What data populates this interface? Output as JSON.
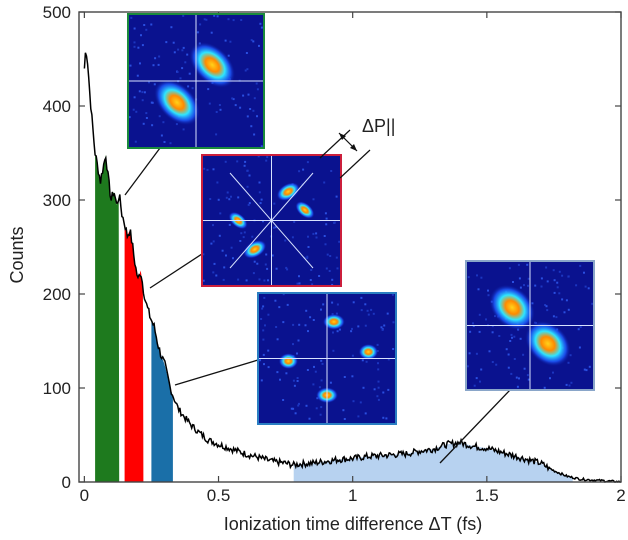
{
  "chart_data": {
    "type": "line",
    "title": "",
    "xlabel": "Ionization time difference ΔT (fs)",
    "ylabel": "Counts",
    "xlim": [
      -0.02,
      2.0
    ],
    "ylim": [
      0,
      500
    ],
    "x_ticks": [
      0,
      0.5,
      1,
      1.5,
      2
    ],
    "x_tick_labels": [
      "0",
      "0.5",
      "1",
      "1.5",
      "2"
    ],
    "y_ticks": [
      0,
      100,
      200,
      300,
      400,
      500
    ],
    "y_tick_labels": [
      "0",
      "100",
      "200",
      "300",
      "400",
      "500"
    ],
    "grid": false,
    "legend": "none",
    "series": [
      {
        "line_color": "#000000",
        "x": [
          0.0,
          0.005,
          0.01,
          0.015,
          0.02,
          0.03,
          0.04,
          0.05,
          0.06,
          0.07,
          0.08,
          0.09,
          0.1,
          0.11,
          0.12,
          0.13,
          0.14,
          0.15,
          0.16,
          0.17,
          0.18,
          0.19,
          0.2,
          0.21,
          0.22,
          0.23,
          0.24,
          0.25,
          0.26,
          0.27,
          0.28,
          0.29,
          0.3,
          0.31,
          0.32,
          0.33,
          0.34,
          0.35,
          0.37,
          0.4,
          0.43,
          0.46,
          0.5,
          0.55,
          0.6,
          0.65,
          0.7,
          0.75,
          0.78,
          0.8,
          0.85,
          0.9,
          0.95,
          1.0,
          1.05,
          1.1,
          1.15,
          1.2,
          1.25,
          1.3,
          1.35,
          1.4,
          1.45,
          1.5,
          1.55,
          1.6,
          1.65,
          1.7,
          1.75,
          1.8,
          1.85,
          1.9,
          1.95,
          2.0
        ],
        "y": [
          440,
          460,
          455,
          435,
          415,
          380,
          350,
          335,
          320,
          335,
          348,
          320,
          300,
          310,
          295,
          305,
          285,
          275,
          262,
          268,
          250,
          230,
          215,
          225,
          205,
          190,
          180,
          172,
          165,
          152,
          140,
          132,
          124,
          112,
          100,
          92,
          85,
          78,
          70,
          60,
          52,
          45,
          40,
          35,
          30,
          26,
          22,
          20,
          18,
          19,
          20,
          22,
          24,
          25,
          27,
          28,
          29,
          30,
          33,
          35,
          40,
          42,
          38,
          36,
          32,
          28,
          24,
          20,
          12,
          6,
          3,
          2,
          1,
          0
        ]
      }
    ],
    "shaded_regions": [
      {
        "x_start": 0.04,
        "x_end": 0.13,
        "color": "#1e7a1e"
      },
      {
        "x_start": 0.15,
        "x_end": 0.22,
        "color": "#ff0000"
      },
      {
        "x_start": 0.25,
        "x_end": 0.33,
        "color": "#1a6fa8"
      },
      {
        "x_start": 0.78,
        "x_end": 1.82,
        "color": "#b7d2f0"
      }
    ],
    "annotations": [
      {
        "text": "ΔP||"
      }
    ],
    "insets": [
      {
        "frame_color": "#1a8a3c",
        "pattern": "two-lobes-diagonal"
      },
      {
        "frame_color": "#cc1f3c",
        "pattern": "four-lobes-rotated"
      },
      {
        "frame_color": "#2a7ec2",
        "pattern": "four-lobes"
      },
      {
        "frame_color": "#8aa6c9",
        "pattern": "two-lobes-diagonal"
      }
    ]
  }
}
